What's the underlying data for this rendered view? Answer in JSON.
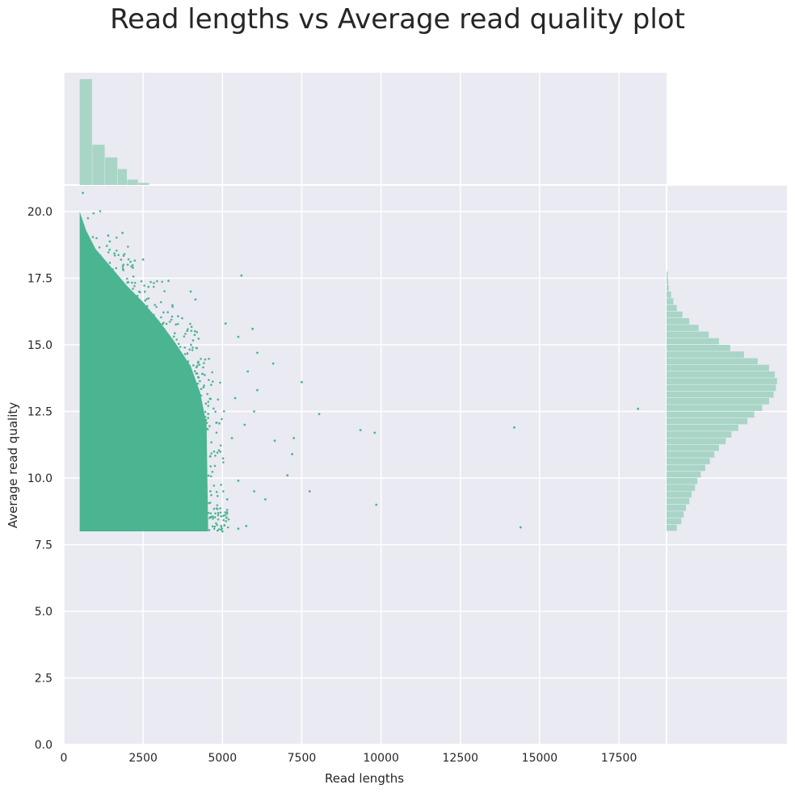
{
  "title": "Read lengths vs Average read quality plot",
  "chart_data": {
    "type": "scatter",
    "title": "Read lengths vs Average read quality plot",
    "xlabel": "Read lengths",
    "ylabel": "Average read quality",
    "xlim": [
      0,
      19000
    ],
    "ylim": [
      0,
      21
    ],
    "xticks": [
      0,
      2500,
      5000,
      7500,
      10000,
      12500,
      15000,
      17500
    ],
    "xtick_labels": [
      "0",
      "2500",
      "5000",
      "7500",
      "10000",
      "12500",
      "15000",
      "17500"
    ],
    "yticks": [
      0,
      2.5,
      5,
      7.5,
      10,
      12.5,
      15,
      17.5,
      20
    ],
    "ytick_labels": [
      "0.0",
      "2.5",
      "5.0",
      "7.5",
      "10.0",
      "12.5",
      "15.0",
      "17.5",
      "20.0"
    ],
    "grid": true,
    "colors": {
      "point": "#4bb491",
      "hist": "#a8d5c6",
      "background": "#eaeaf2",
      "grid": "#ffffff"
    },
    "dense_region": {
      "x_min": 500,
      "y_min": 8.0,
      "y_top_at_x": [
        [
          500,
          20.0
        ],
        [
          700,
          19.3
        ],
        [
          1000,
          18.6
        ],
        [
          1500,
          17.9
        ],
        [
          2000,
          17.2
        ],
        [
          2500,
          16.6
        ],
        [
          3000,
          15.9
        ],
        [
          3500,
          15.1
        ],
        [
          4000,
          14.2
        ],
        [
          4300,
          13.2
        ],
        [
          4500,
          12.0
        ],
        [
          4550,
          8.0
        ]
      ]
    },
    "outliers": [
      {
        "x": 600,
        "y": 20.7
      },
      {
        "x": 2500,
        "y": 18.2
      },
      {
        "x": 1400,
        "y": 19.1
      },
      {
        "x": 1850,
        "y": 19.2
      },
      {
        "x": 3300,
        "y": 17.4
      },
      {
        "x": 4000,
        "y": 17.0
      },
      {
        "x": 4150,
        "y": 16.7
      },
      {
        "x": 5600,
        "y": 17.6
      },
      {
        "x": 5100,
        "y": 15.8
      },
      {
        "x": 5500,
        "y": 15.3
      },
      {
        "x": 5950,
        "y": 15.6
      },
      {
        "x": 6100,
        "y": 14.7
      },
      {
        "x": 5800,
        "y": 14.0
      },
      {
        "x": 6600,
        "y": 14.3
      },
      {
        "x": 6100,
        "y": 13.3
      },
      {
        "x": 5400,
        "y": 13.0
      },
      {
        "x": 5700,
        "y": 12.0
      },
      {
        "x": 6000,
        "y": 12.5
      },
      {
        "x": 5300,
        "y": 11.5
      },
      {
        "x": 7500,
        "y": 13.6
      },
      {
        "x": 8050,
        "y": 12.4
      },
      {
        "x": 6650,
        "y": 11.4
      },
      {
        "x": 7250,
        "y": 11.5
      },
      {
        "x": 7200,
        "y": 10.9
      },
      {
        "x": 7050,
        "y": 10.1
      },
      {
        "x": 5500,
        "y": 9.9
      },
      {
        "x": 6000,
        "y": 9.5
      },
      {
        "x": 6350,
        "y": 9.2
      },
      {
        "x": 5150,
        "y": 9.2
      },
      {
        "x": 5750,
        "y": 8.2
      },
      {
        "x": 5500,
        "y": 8.1
      },
      {
        "x": 5000,
        "y": 8.0
      },
      {
        "x": 7750,
        "y": 9.5
      },
      {
        "x": 9350,
        "y": 11.8
      },
      {
        "x": 9800,
        "y": 11.7
      },
      {
        "x": 9850,
        "y": 9.0
      },
      {
        "x": 14200,
        "y": 11.9
      },
      {
        "x": 14400,
        "y": 8.15
      },
      {
        "x": 18100,
        "y": 12.6
      }
    ],
    "x_marginal_histogram": {
      "bin_edges": [
        500,
        900,
        1300,
        1700,
        2000,
        2350,
        2700
      ],
      "heights": [
        1.0,
        0.38,
        0.26,
        0.15,
        0.05,
        0.02
      ]
    },
    "y_marginal_histogram": {
      "bin_width": 0.25,
      "bin_starts": [
        8.0,
        8.25,
        8.5,
        8.75,
        9.0,
        9.25,
        9.5,
        9.75,
        10.0,
        10.25,
        10.5,
        10.75,
        11.0,
        11.25,
        11.5,
        11.75,
        12.0,
        12.25,
        12.5,
        12.75,
        13.0,
        13.25,
        13.5,
        13.75,
        14.0,
        14.25,
        14.5,
        14.75,
        15.0,
        15.25,
        15.5,
        15.75,
        16.0,
        16.25,
        16.5,
        16.75,
        17.0,
        17.25,
        17.5
      ],
      "heights": [
        0.09,
        0.13,
        0.15,
        0.17,
        0.2,
        0.22,
        0.25,
        0.27,
        0.3,
        0.34,
        0.38,
        0.42,
        0.46,
        0.52,
        0.57,
        0.63,
        0.71,
        0.77,
        0.84,
        0.9,
        0.94,
        0.96,
        0.97,
        0.95,
        0.9,
        0.8,
        0.68,
        0.56,
        0.46,
        0.37,
        0.28,
        0.2,
        0.14,
        0.09,
        0.06,
        0.04,
        0.02,
        0.015,
        0.01
      ]
    }
  }
}
